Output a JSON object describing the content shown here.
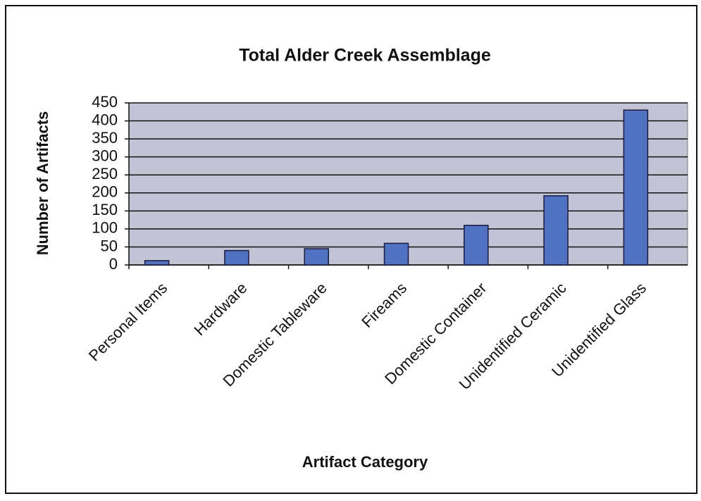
{
  "chart_data": {
    "type": "bar",
    "title": "Total Alder Creek Assemblage",
    "x_label": "Artifact Category",
    "y_label": "Number of Artifacts",
    "categories": [
      "Personal Items",
      "Hardware",
      "Domestic Tableware",
      "Fireams",
      "Domestic Container",
      "Unidentified Ceramic",
      "Unidentified Glass"
    ],
    "values": [
      12,
      40,
      45,
      60,
      110,
      192,
      430
    ],
    "color": "#5072c0",
    "ylim": [
      0,
      450
    ],
    "yticks": [
      0,
      50,
      100,
      150,
      200,
      250,
      300,
      350,
      400,
      450
    ],
    "grid": true
  }
}
